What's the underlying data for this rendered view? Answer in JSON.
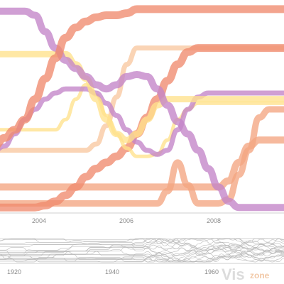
{
  "chart_data": {
    "type": "line",
    "title": "",
    "xlabel": "",
    "ylabel": "",
    "main": {
      "x_ticks": [
        "2004",
        "2006",
        "2008"
      ],
      "series": [
        {
          "color": "#f4a582",
          "values": [
            0.04,
            0.04,
            0.04,
            0.04,
            0.04,
            0.04,
            0.04,
            0.04,
            0.04,
            0.04,
            0.04,
            0.04,
            0.04,
            0.04,
            0.04,
            0.04,
            0.04,
            0.1,
            0.24,
            0.13,
            0.04,
            0.04,
            0.04,
            0.06,
            0.18,
            0.3,
            0.46,
            0.5,
            0.5,
            0.5
          ]
        },
        {
          "color": "#f4a582",
          "values": [
            0.12,
            0.12,
            0.12,
            0.12,
            0.12,
            0.12,
            0.12,
            0.12,
            0.12,
            0.12,
            0.12,
            0.12,
            0.12,
            0.12,
            0.12,
            0.12,
            0.12,
            0.12,
            0.12,
            0.12,
            0.12,
            0.12,
            0.12,
            0.15,
            0.24,
            0.32,
            0.35,
            0.35,
            0.35,
            0.35
          ]
        },
        {
          "color": "#f8c8a0",
          "values": [
            0.3,
            0.3,
            0.3,
            0.3,
            0.3,
            0.3,
            0.3,
            0.3,
            0.3,
            0.3,
            0.33,
            0.42,
            0.56,
            0.72,
            0.8,
            0.8,
            0.8,
            0.8,
            0.8,
            0.8,
            0.8,
            0.8,
            0.8,
            0.8,
            0.8,
            0.8,
            0.8,
            0.8,
            0.8,
            0.8
          ]
        },
        {
          "color": "#f08a6e",
          "values": [
            0.02,
            0.02,
            0.02,
            0.02,
            0.02,
            0.03,
            0.05,
            0.08,
            0.12,
            0.17,
            0.21,
            0.24,
            0.27,
            0.31,
            0.38,
            0.46,
            0.55,
            0.64,
            0.72,
            0.78,
            0.8,
            0.8,
            0.8,
            0.8,
            0.8,
            0.8,
            0.8,
            0.8,
            0.8,
            0.8
          ]
        },
        {
          "color": "#ffe18c",
          "values": [
            0.4,
            0.4,
            0.4,
            0.4,
            0.4,
            0.4,
            0.4,
            0.45,
            0.55,
            0.62,
            0.57,
            0.47,
            0.38,
            0.31,
            0.27,
            0.27,
            0.28,
            0.35,
            0.45,
            0.5,
            0.53,
            0.53,
            0.53,
            0.53,
            0.53,
            0.53,
            0.53,
            0.53,
            0.53,
            0.53
          ]
        },
        {
          "color": "#c384c8",
          "values": [
            0.3,
            0.32,
            0.38,
            0.45,
            0.5,
            0.55,
            0.58,
            0.6,
            0.6,
            0.6,
            0.58,
            0.53,
            0.47,
            0.4,
            0.34,
            0.3,
            0.28,
            0.3,
            0.4,
            0.5,
            0.56,
            0.58,
            0.58,
            0.58,
            0.58,
            0.58,
            0.58,
            0.58,
            0.58,
            0.58
          ]
        },
        {
          "color": "#ffe18c",
          "values": [
            0.77,
            0.77,
            0.77,
            0.77,
            0.77,
            0.77,
            0.77,
            0.77,
            0.72,
            0.65,
            0.55,
            0.45,
            0.38,
            0.35,
            0.38,
            0.45,
            0.52,
            0.55,
            0.55,
            0.55,
            0.55,
            0.55,
            0.55,
            0.55,
            0.55,
            0.55,
            0.55,
            0.55,
            0.55,
            0.55
          ]
        },
        {
          "color": "#c384c8",
          "values": [
            0.98,
            0.98,
            0.98,
            0.98,
            0.96,
            0.88,
            0.8,
            0.74,
            0.7,
            0.66,
            0.62,
            0.6,
            0.62,
            0.66,
            0.67,
            0.66,
            0.6,
            0.52,
            0.44,
            0.38,
            0.3,
            0.21,
            0.12,
            0.05,
            0.02,
            0.02,
            0.02,
            0.02,
            0.02,
            0.02
          ]
        },
        {
          "color": "#f08a6e",
          "values": [
            0.32,
            0.36,
            0.4,
            0.45,
            0.55,
            0.65,
            0.75,
            0.85,
            0.9,
            0.93,
            0.95,
            0.96,
            0.96,
            0.97,
            0.99,
            0.99,
            0.99,
            0.99,
            0.99,
            0.99,
            0.99,
            0.99,
            0.99,
            0.99,
            0.99,
            0.99,
            0.99,
            0.99,
            0.99,
            0.99
          ]
        }
      ]
    },
    "overview": {
      "x_ticks": [
        "1920",
        "1940",
        "1960"
      ]
    }
  },
  "watermark": {
    "prefix": "Vis",
    "suffix": "zone"
  }
}
